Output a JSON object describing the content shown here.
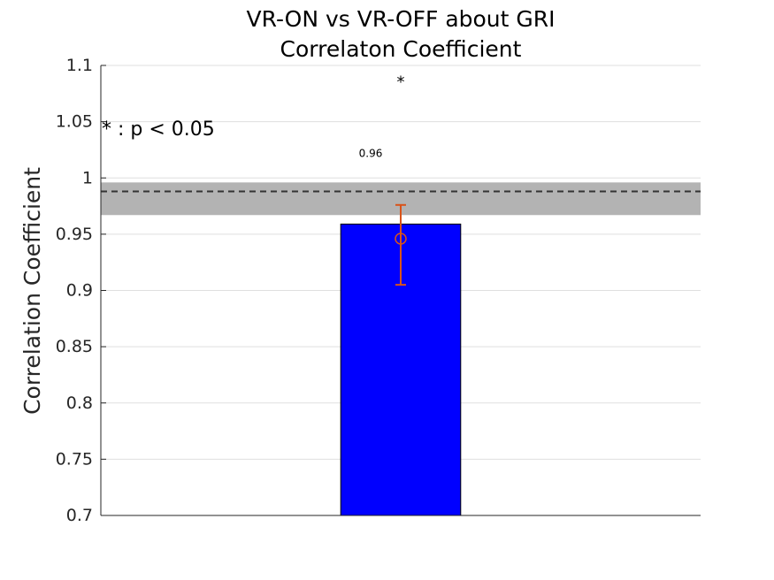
{
  "chart_data": {
    "type": "bar",
    "title": [
      "VR-ON vs VR-OFF about GRI",
      "Correlaton Coefficient"
    ],
    "xlabel": "",
    "ylabel": "Correlation Coefficient",
    "ylim": [
      0.7,
      1.1
    ],
    "yticks": [
      0.7,
      0.75,
      0.8,
      0.85,
      0.9,
      0.95,
      1,
      1.05,
      1.1
    ],
    "ytick_labels": [
      "0.7",
      "0.75",
      "0.8",
      "0.85",
      "0.9",
      "0.95",
      "1",
      "1.05",
      "1.1"
    ],
    "xlim": [
      0,
      2
    ],
    "categories": [
      ""
    ],
    "values": [
      0.959
    ],
    "value_labels": [
      "0.96"
    ],
    "bar_color": "#0000ff",
    "errorbar": {
      "x": 1,
      "mean": 0.946,
      "lower": 0.905,
      "upper": 0.976,
      "color": "#d95319"
    },
    "reference_band": {
      "center": 0.988,
      "lower": 0.967,
      "upper": 0.996,
      "band_color": "#b3b3b3",
      "line_color": "#333333"
    },
    "significance_marker": "*",
    "significance_value": 1.09,
    "legend_note": "* : p < 0.05",
    "grid": true,
    "grid_axis": "y",
    "gridline_color": "#dfdfdf",
    "axis_color": "#262626"
  }
}
